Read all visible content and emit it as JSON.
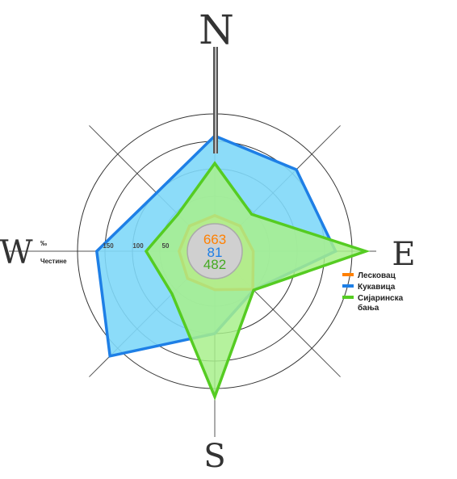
{
  "chart_data": {
    "type": "radar",
    "directions": [
      "N",
      "NE",
      "E",
      "SE",
      "S",
      "SW",
      "W",
      "NW"
    ],
    "cardinal_labels": [
      "N",
      "E",
      "S",
      "W"
    ],
    "unit_label": "‰",
    "unit_sublabel": "Честине",
    "ring_values": [
      50,
      100,
      150,
      200
    ],
    "ring_labels": [
      "50",
      "100",
      "150"
    ],
    "rmax": 200,
    "calm_label": "",
    "series": [
      {
        "name": "Лесковац",
        "color": "#ff8000",
        "calm": "663",
        "values": [
          15,
          15,
          20,
          48,
          20,
          20,
          15,
          15
        ]
      },
      {
        "name": "Кукавица",
        "color": "#1e7fe6",
        "calm": "81",
        "values": [
          160,
          160,
          170,
          50,
          100,
          220,
          165,
          100
        ]
      },
      {
        "name": "Сијаринска бања",
        "color": "#55cc22",
        "calm": "482",
        "values": [
          110,
          45,
          225,
          50,
          215,
          60,
          75,
          45
        ]
      }
    ],
    "legend": {
      "position": "right"
    }
  }
}
